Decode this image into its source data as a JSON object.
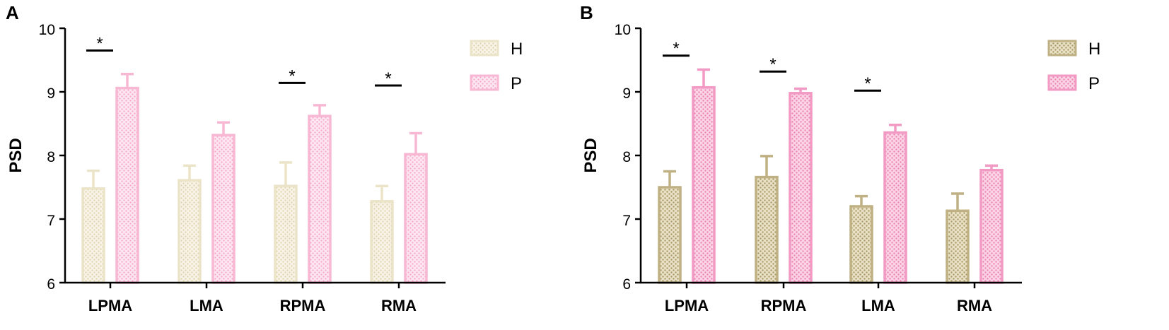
{
  "colors": {
    "a_h": "#ece4c8",
    "a_p": "#f8b8d4",
    "b_h": "#bfb184",
    "b_p": "#f29ac3"
  },
  "chart_data": [
    {
      "type": "bar",
      "panel_label": "A",
      "ylabel": "PSD",
      "ylim": [
        6,
        10
      ],
      "yticks": [
        "6",
        "7",
        "8",
        "9",
        "10"
      ],
      "categories": [
        "LPMA",
        "LMA",
        "RPMA",
        "RMA"
      ],
      "legend_position": "top-right",
      "series": [
        {
          "name": "H",
          "values": [
            7.48,
            7.61,
            7.52,
            7.28
          ],
          "errors": [
            0.28,
            0.23,
            0.37,
            0.24
          ]
        },
        {
          "name": "P",
          "values": [
            9.06,
            8.32,
            8.62,
            8.02
          ],
          "errors": [
            0.22,
            0.2,
            0.17,
            0.33
          ]
        }
      ],
      "significance": [
        {
          "category": "LPMA",
          "label": "*",
          "y": 9.65
        },
        {
          "category": "RPMA",
          "label": "*",
          "y": 9.14
        },
        {
          "category": "RMA",
          "label": "*",
          "y": 9.1
        }
      ]
    },
    {
      "type": "bar",
      "panel_label": "B",
      "ylabel": "PSD",
      "ylim": [
        6,
        10
      ],
      "yticks": [
        "6",
        "7",
        "8",
        "9",
        "10"
      ],
      "categories": [
        "LPMA",
        "RPMA",
        "LMA",
        "RMA"
      ],
      "legend_position": "top-right",
      "series": [
        {
          "name": "H",
          "values": [
            7.5,
            7.66,
            7.2,
            7.13
          ],
          "errors": [
            0.25,
            0.33,
            0.16,
            0.27
          ]
        },
        {
          "name": "P",
          "values": [
            9.07,
            8.98,
            8.36,
            7.77
          ],
          "errors": [
            0.28,
            0.07,
            0.12,
            0.07
          ]
        }
      ],
      "significance": [
        {
          "category": "LPMA",
          "label": "*",
          "y": 9.57
        },
        {
          "category": "RPMA",
          "label": "*",
          "y": 9.32
        },
        {
          "category": "LMA",
          "label": "*",
          "y": 9.02
        }
      ]
    }
  ]
}
